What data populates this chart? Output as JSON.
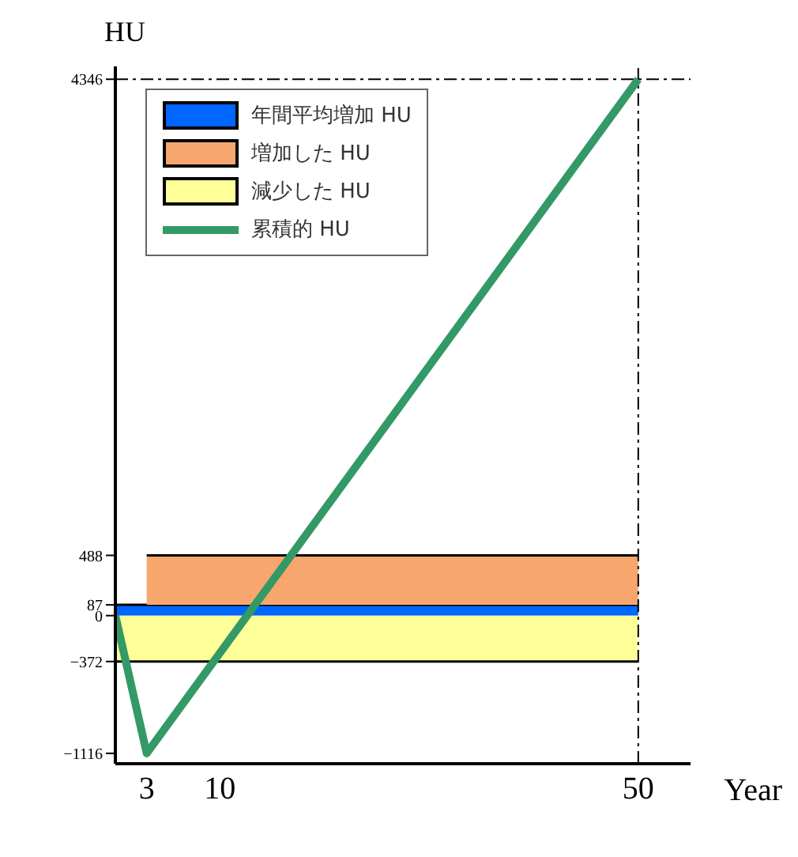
{
  "chart_data": {
    "type": "area",
    "xlabel": "Year",
    "ylabel": "HU",
    "stacked": true,
    "xlim": [
      0,
      55
    ],
    "xticks": [
      3,
      10,
      50
    ],
    "ylim": [
      -1200,
      4450
    ],
    "yticks": [
      -1116,
      -372,
      0,
      87,
      488,
      4346
    ],
    "grid": false,
    "legend": "top left",
    "marker": "none",
    "series": [
      {
        "name": "年間平均増加 HU",
        "color": "#0066ff",
        "x": [
          0,
          3,
          50
        ],
        "values": [
          87,
          87,
          87
        ]
      },
      {
        "name": "増加した HU",
        "color": "#f7a66e",
        "x": [
          3,
          50
        ],
        "values": [
          401,
          401
        ]
      },
      {
        "name": "減少した HU",
        "color": "#ffff99",
        "x": [
          0,
          3,
          50
        ],
        "values": [
          -372,
          -372,
          -372
        ]
      },
      {
        "name": "累積的 HU",
        "type": "line",
        "color": "#339966",
        "x": [
          0,
          3,
          50
        ],
        "values": [
          0,
          -1116,
          4346
        ]
      }
    ],
    "ref_lines": [
      {
        "axis": "y",
        "value": 4346,
        "line_style": "dashed"
      },
      {
        "axis": "x",
        "value": 50,
        "line_style": "dashed"
      }
    ]
  }
}
